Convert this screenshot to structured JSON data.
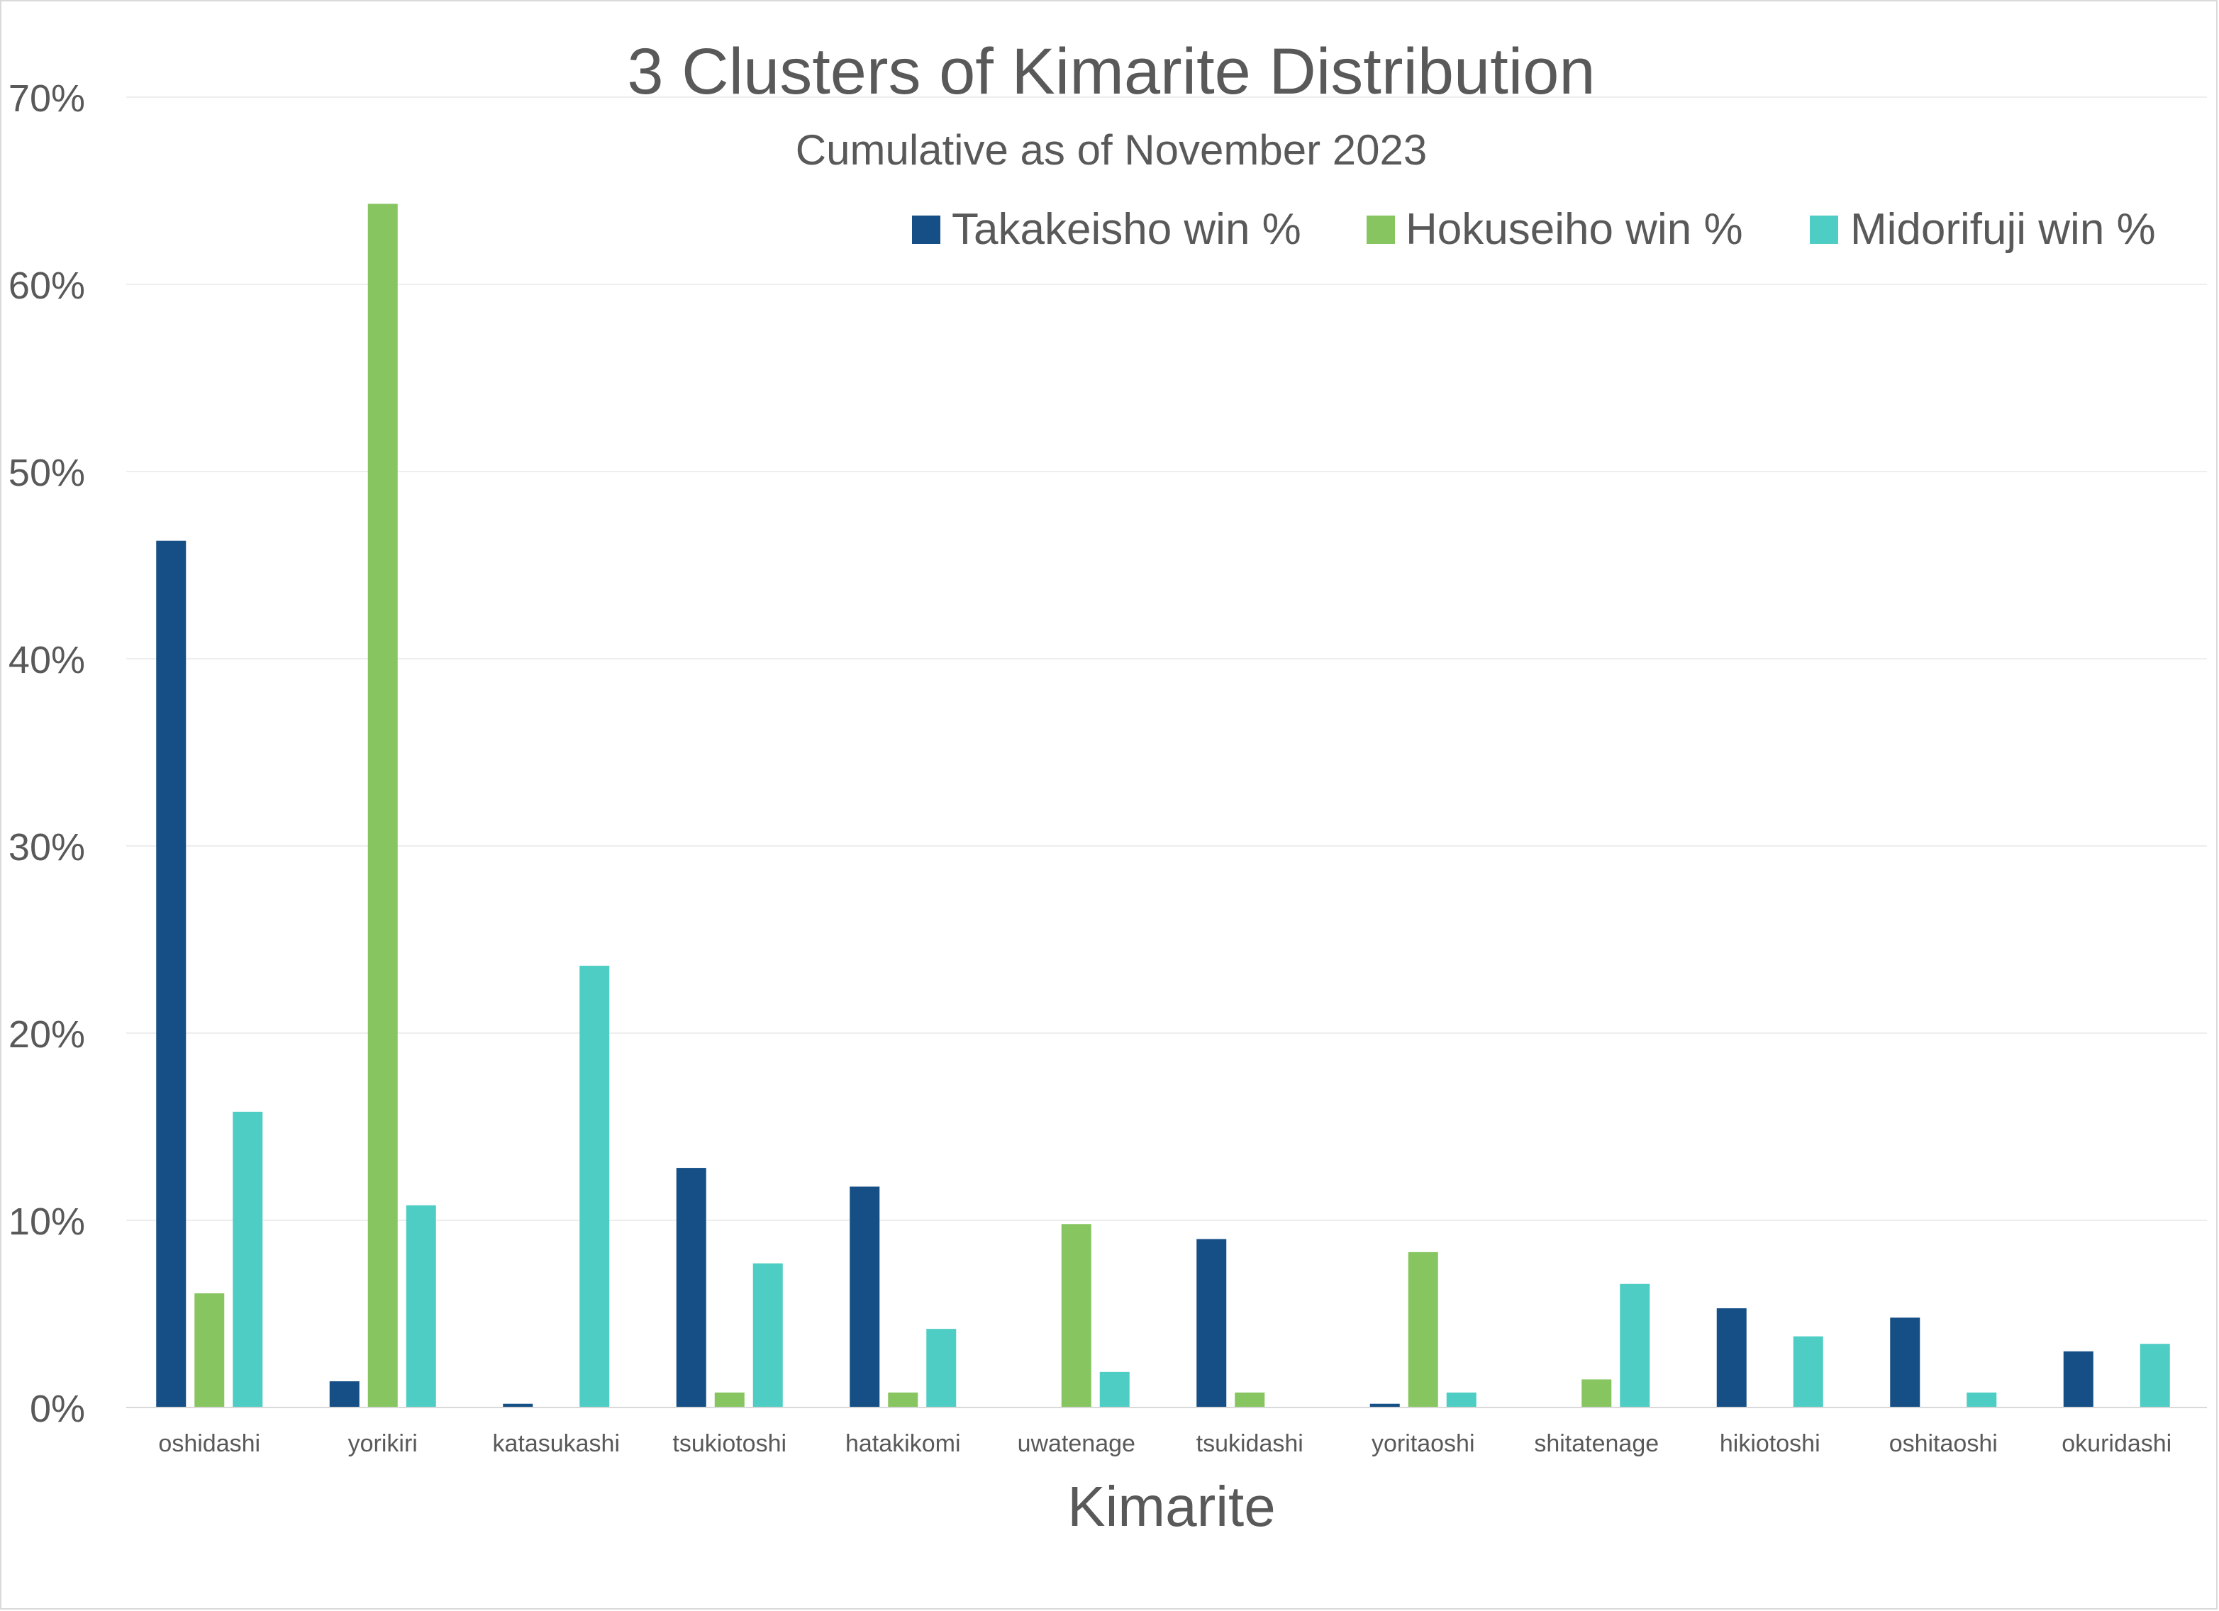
{
  "chart_data": {
    "type": "bar",
    "title": "3 Clusters of Kimarite Distribution",
    "subtitle": "Cumulative as of November 2023",
    "xlabel": "Kimarite",
    "ylabel": "",
    "ylim": [
      0,
      70
    ],
    "y_ticks": [
      "0%",
      "10%",
      "20%",
      "30%",
      "40%",
      "50%",
      "60%",
      "70%"
    ],
    "grid": true,
    "legend_position": "top-right",
    "categories": [
      "oshidashi",
      "yorikiri",
      "katasukashi",
      "tsukiotoshi",
      "hatakikomi",
      "uwatenage",
      "tsukidashi",
      "yoritaoshi",
      "shitatenage",
      "hikiotoshi",
      "oshitaoshi",
      "okuridashi"
    ],
    "series": [
      {
        "name": "Takakeisho win %",
        "color": "#154f86",
        "values": [
          46.3,
          1.4,
          0.2,
          12.8,
          11.8,
          0,
          9.0,
          0.2,
          0,
          5.3,
          4.8,
          3.0
        ]
      },
      {
        "name": "Hokuseiho win %",
        "color": "#87c560",
        "values": [
          6.1,
          64.3,
          0,
          0.8,
          0.8,
          9.8,
          0.8,
          8.3,
          1.5,
          0,
          0,
          0
        ]
      },
      {
        "name": "Midorifuji win %",
        "color": "#4ecdc4",
        "values": [
          15.8,
          10.8,
          23.6,
          7.7,
          4.2,
          1.9,
          0,
          0.8,
          6.6,
          3.8,
          0.8,
          3.4
        ]
      }
    ]
  }
}
